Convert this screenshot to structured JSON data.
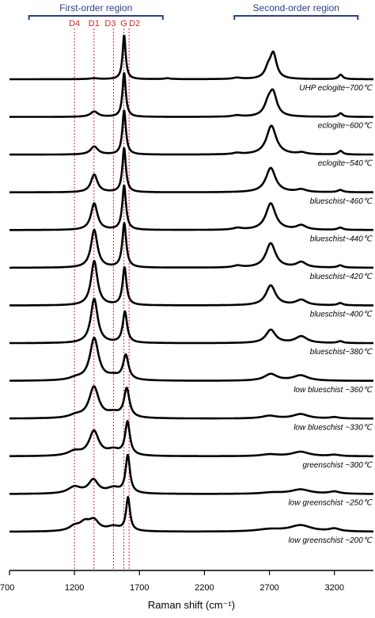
{
  "chart_data": {
    "type": "line",
    "xlabel": "Raman shift (cm⁻¹)",
    "xlim": [
      700,
      3500
    ],
    "x_ticks": [
      "700",
      "1200",
      "1700",
      "2200",
      "2700",
      "3200"
    ],
    "x_tick_values": [
      700,
      1200,
      1700,
      2200,
      2700,
      3200
    ],
    "y_axis_shown": false,
    "grid": false,
    "regions": [
      {
        "label": "First-order region",
        "x_range": [
          850,
          1880
        ]
      },
      {
        "label": "Second-order region",
        "x_range": [
          2430,
          3380
        ]
      }
    ],
    "peak_markers": [
      {
        "label": "D4",
        "x": 1200
      },
      {
        "label": "D1",
        "x": 1350
      },
      {
        "label": "D3",
        "x": 1500
      },
      {
        "label": "G",
        "x": 1580
      },
      {
        "label": "D2",
        "x": 1620
      }
    ],
    "series": [
      {
        "name": "UHP eclogite~700℃",
        "peaks": [
          {
            "x": 1350,
            "a": 0.02,
            "w": 40
          },
          {
            "x": 1582,
            "a": 1.0,
            "w": 14
          },
          {
            "x": 1915,
            "a": 0.02,
            "w": 30
          },
          {
            "x": 2450,
            "a": 0.03,
            "w": 40
          },
          {
            "x": 2690,
            "a": 0.2,
            "w": 30
          },
          {
            "x": 2730,
            "a": 0.55,
            "w": 30
          },
          {
            "x": 3248,
            "a": 0.1,
            "w": 20
          }
        ]
      },
      {
        "name": "eclogite~600℃",
        "peaks": [
          {
            "x": 1352,
            "a": 0.12,
            "w": 35
          },
          {
            "x": 1582,
            "a": 1.0,
            "w": 15
          },
          {
            "x": 2450,
            "a": 0.03,
            "w": 40
          },
          {
            "x": 2690,
            "a": 0.25,
            "w": 35
          },
          {
            "x": 2728,
            "a": 0.5,
            "w": 35
          },
          {
            "x": 3248,
            "a": 0.08,
            "w": 20
          }
        ]
      },
      {
        "name": "eclogite~540℃",
        "peaks": [
          {
            "x": 1352,
            "a": 0.18,
            "w": 35
          },
          {
            "x": 1582,
            "a": 1.0,
            "w": 16
          },
          {
            "x": 2450,
            "a": 0.03,
            "w": 40
          },
          {
            "x": 2715,
            "a": 0.65,
            "w": 45
          },
          {
            "x": 2950,
            "a": 0.04,
            "w": 40
          },
          {
            "x": 3248,
            "a": 0.08,
            "w": 20
          }
        ]
      },
      {
        "name": "blueschist~460℃",
        "peaks": [
          {
            "x": 1352,
            "a": 0.4,
            "w": 30
          },
          {
            "x": 1582,
            "a": 1.0,
            "w": 16
          },
          {
            "x": 2710,
            "a": 0.55,
            "w": 45
          },
          {
            "x": 2945,
            "a": 0.06,
            "w": 45
          },
          {
            "x": 3245,
            "a": 0.05,
            "w": 25
          }
        ]
      },
      {
        "name": "blueschist~440℃",
        "peaks": [
          {
            "x": 1352,
            "a": 0.6,
            "w": 30
          },
          {
            "x": 1582,
            "a": 1.0,
            "w": 17
          },
          {
            "x": 2455,
            "a": 0.04,
            "w": 40
          },
          {
            "x": 2710,
            "a": 0.6,
            "w": 45
          },
          {
            "x": 2945,
            "a": 0.1,
            "w": 45
          },
          {
            "x": 3245,
            "a": 0.05,
            "w": 25
          }
        ]
      },
      {
        "name": "blueschist~420℃",
        "peaks": [
          {
            "x": 1352,
            "a": 0.85,
            "w": 30
          },
          {
            "x": 1583,
            "a": 1.0,
            "w": 18
          },
          {
            "x": 2455,
            "a": 0.04,
            "w": 40
          },
          {
            "x": 2710,
            "a": 0.55,
            "w": 45
          },
          {
            "x": 2945,
            "a": 0.12,
            "w": 45
          },
          {
            "x": 3245,
            "a": 0.05,
            "w": 25
          }
        ]
      },
      {
        "name": "blueschist~400℃",
        "peaks": [
          {
            "x": 1352,
            "a": 1.0,
            "w": 30
          },
          {
            "x": 1585,
            "a": 0.85,
            "w": 18
          },
          {
            "x": 2710,
            "a": 0.45,
            "w": 45
          },
          {
            "x": 2945,
            "a": 0.12,
            "w": 50
          },
          {
            "x": 3245,
            "a": 0.05,
            "w": 25
          }
        ]
      },
      {
        "name": "blueschist~380℃",
        "peaks": [
          {
            "x": 1352,
            "a": 1.0,
            "w": 32
          },
          {
            "x": 1588,
            "a": 0.7,
            "w": 20
          },
          {
            "x": 2710,
            "a": 0.3,
            "w": 45
          },
          {
            "x": 2945,
            "a": 0.15,
            "w": 55
          },
          {
            "x": 3245,
            "a": 0.04,
            "w": 25
          }
        ]
      },
      {
        "name": "low blueschist ~360℃",
        "peaks": [
          {
            "x": 1210,
            "a": 0.05,
            "w": 60
          },
          {
            "x": 1352,
            "a": 0.95,
            "w": 40
          },
          {
            "x": 1500,
            "a": 0.08,
            "w": 60
          },
          {
            "x": 1595,
            "a": 0.55,
            "w": 25
          },
          {
            "x": 2710,
            "a": 0.15,
            "w": 60
          },
          {
            "x": 2940,
            "a": 0.12,
            "w": 70
          }
        ]
      },
      {
        "name": "low blueschist ~330℃",
        "peaks": [
          {
            "x": 1210,
            "a": 0.06,
            "w": 60
          },
          {
            "x": 1350,
            "a": 0.7,
            "w": 45
          },
          {
            "x": 1500,
            "a": 0.1,
            "w": 60
          },
          {
            "x": 1602,
            "a": 0.65,
            "w": 25
          },
          {
            "x": 2700,
            "a": 0.06,
            "w": 70
          },
          {
            "x": 2940,
            "a": 0.1,
            "w": 70
          },
          {
            "x": 3200,
            "a": 0.03,
            "w": 40
          }
        ]
      },
      {
        "name": "greenschist ~300℃",
        "peaks": [
          {
            "x": 1200,
            "a": 0.1,
            "w": 60
          },
          {
            "x": 1350,
            "a": 0.55,
            "w": 45
          },
          {
            "x": 1500,
            "a": 0.12,
            "w": 60
          },
          {
            "x": 1608,
            "a": 0.75,
            "w": 22
          },
          {
            "x": 2700,
            "a": 0.04,
            "w": 80
          },
          {
            "x": 2940,
            "a": 0.1,
            "w": 80
          },
          {
            "x": 3200,
            "a": 0.03,
            "w": 50
          }
        ]
      },
      {
        "name": "low greenschist ~250℃",
        "peaks": [
          {
            "x": 1200,
            "a": 0.15,
            "w": 60
          },
          {
            "x": 1345,
            "a": 0.3,
            "w": 45
          },
          {
            "x": 1500,
            "a": 0.12,
            "w": 60
          },
          {
            "x": 1610,
            "a": 0.85,
            "w": 20
          },
          {
            "x": 2720,
            "a": 0.03,
            "w": 100
          },
          {
            "x": 2940,
            "a": 0.1,
            "w": 90
          },
          {
            "x": 3200,
            "a": 0.05,
            "w": 50
          }
        ]
      },
      {
        "name": "low greenschist ~200℃",
        "peaks": [
          {
            "x": 1200,
            "a": 0.1,
            "w": 50
          },
          {
            "x": 1280,
            "a": 0.18,
            "w": 50
          },
          {
            "x": 1350,
            "a": 0.22,
            "w": 45
          },
          {
            "x": 1500,
            "a": 0.1,
            "w": 60
          },
          {
            "x": 1612,
            "a": 0.75,
            "w": 18
          },
          {
            "x": 2700,
            "a": 0.05,
            "w": 120
          },
          {
            "x": 2940,
            "a": 0.14,
            "w": 100
          },
          {
            "x": 3200,
            "a": 0.06,
            "w": 50
          }
        ]
      }
    ]
  },
  "colors": {
    "spectrum": "#000000",
    "marker": "#d62728",
    "region": "#2c3e8f"
  }
}
